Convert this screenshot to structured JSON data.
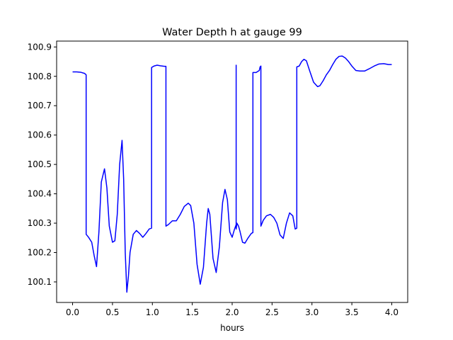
{
  "chart_data": {
    "type": "line",
    "title": "Water Depth h at gauge 99",
    "xlabel": "hours",
    "ylabel": "",
    "xlim": [
      -0.2,
      4.2
    ],
    "ylim": [
      100.03,
      100.92
    ],
    "xticks": [
      0.0,
      0.5,
      1.0,
      1.5,
      2.0,
      2.5,
      3.0,
      3.5,
      4.0
    ],
    "xtick_labels": [
      "0.0",
      "0.5",
      "1.0",
      "1.5",
      "2.0",
      "2.5",
      "3.0",
      "3.5",
      "4.0"
    ],
    "yticks": [
      100.1,
      100.2,
      100.3,
      100.4,
      100.5,
      100.6,
      100.7,
      100.8,
      100.9
    ],
    "ytick_labels": [
      "100.1",
      "100.2",
      "100.3",
      "100.4",
      "100.5",
      "100.6",
      "100.7",
      "100.8",
      "100.9"
    ],
    "grid": false,
    "series": [
      {
        "color": "#0000ff",
        "x": [
          0.0,
          0.05,
          0.1,
          0.15,
          0.17,
          0.17,
          0.2,
          0.24,
          0.27,
          0.3,
          0.33,
          0.36,
          0.4,
          0.43,
          0.46,
          0.5,
          0.53,
          0.56,
          0.59,
          0.62,
          0.64,
          0.66,
          0.68,
          0.7,
          0.72,
          0.76,
          0.8,
          0.84,
          0.88,
          0.92,
          0.96,
          0.99,
          0.99,
          1.02,
          1.06,
          1.1,
          1.15,
          1.17,
          1.17,
          1.2,
          1.25,
          1.3,
          1.35,
          1.4,
          1.45,
          1.48,
          1.52,
          1.56,
          1.6,
          1.64,
          1.68,
          1.7,
          1.72,
          1.76,
          1.8,
          1.84,
          1.88,
          1.91,
          1.94,
          1.97,
          2.0,
          2.03,
          2.05,
          2.05,
          2.05,
          2.06,
          2.08,
          2.1,
          2.13,
          2.16,
          2.2,
          2.24,
          2.26,
          2.26,
          2.3,
          2.34,
          2.35,
          2.36,
          2.36,
          2.39,
          2.43,
          2.48,
          2.52,
          2.56,
          2.6,
          2.64,
          2.68,
          2.72,
          2.76,
          2.79,
          2.81,
          2.81,
          2.84,
          2.87,
          2.9,
          2.93,
          2.97,
          3.02,
          3.07,
          3.1,
          3.14,
          3.18,
          3.22,
          3.26,
          3.3,
          3.34,
          3.38,
          3.42,
          3.46,
          3.5,
          3.55,
          3.6,
          3.66,
          3.72,
          3.78,
          3.84,
          3.9,
          3.96,
          4.0
        ],
        "y": [
          100.815,
          100.815,
          100.814,
          100.81,
          100.805,
          100.262,
          100.252,
          100.235,
          100.19,
          100.152,
          100.27,
          100.44,
          100.485,
          100.42,
          100.29,
          100.235,
          100.24,
          100.33,
          100.5,
          100.582,
          100.45,
          100.2,
          100.065,
          100.12,
          100.2,
          100.262,
          100.275,
          100.265,
          100.252,
          100.265,
          100.28,
          100.283,
          100.83,
          100.835,
          100.838,
          100.836,
          100.834,
          100.834,
          100.29,
          100.295,
          100.308,
          100.308,
          100.33,
          100.357,
          100.368,
          100.36,
          100.3,
          100.16,
          100.092,
          100.15,
          100.3,
          100.35,
          100.33,
          100.18,
          100.132,
          100.22,
          100.37,
          100.415,
          100.38,
          100.27,
          100.252,
          100.28,
          100.295,
          100.838,
          100.28,
          100.3,
          100.29,
          100.27,
          100.235,
          100.232,
          100.25,
          100.265,
          100.268,
          100.813,
          100.813,
          100.82,
          100.832,
          100.835,
          100.29,
          100.31,
          100.325,
          100.33,
          100.32,
          100.3,
          100.26,
          100.248,
          100.3,
          100.335,
          100.325,
          100.28,
          100.283,
          100.832,
          100.835,
          100.85,
          100.858,
          100.853,
          100.82,
          100.78,
          100.765,
          100.768,
          100.785,
          100.805,
          100.82,
          100.84,
          100.858,
          100.868,
          100.869,
          100.862,
          100.85,
          100.835,
          100.82,
          100.818,
          100.818,
          100.826,
          100.835,
          100.842,
          100.843,
          100.84,
          100.84
        ]
      }
    ]
  }
}
